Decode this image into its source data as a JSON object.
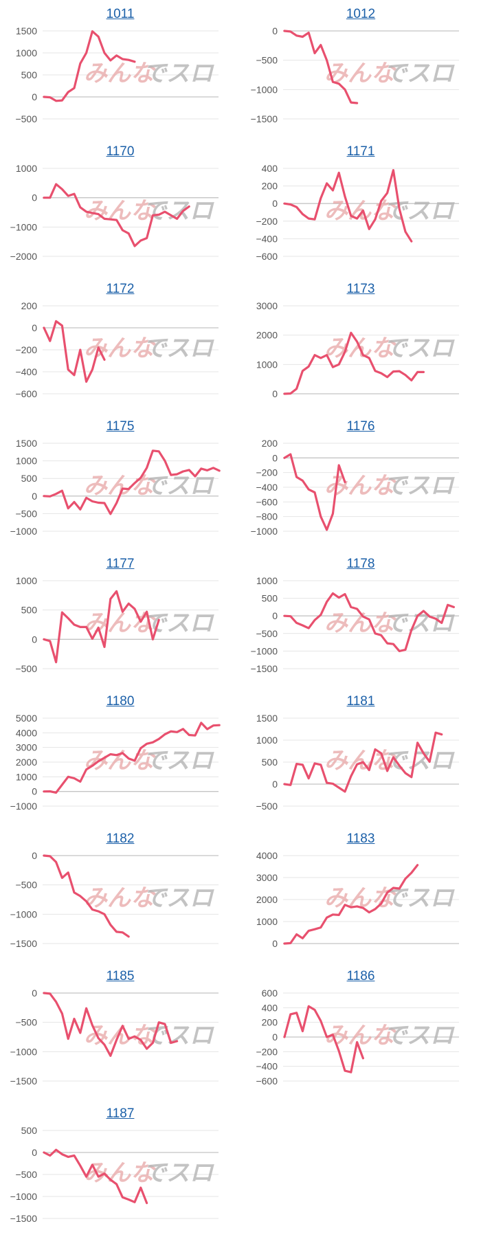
{
  "watermark": {
    "part1": "みんな",
    "part2": "でスロ"
  },
  "colors": {
    "line": "#e8506e",
    "title": "#1a5fa8"
  },
  "chart_data": [
    {
      "type": "line",
      "title": "1011",
      "ylim": [
        -500,
        1500
      ],
      "yticks": [
        1500,
        1000,
        500,
        0,
        -500
      ],
      "values": [
        0,
        -10,
        -90,
        -80,
        110,
        200,
        760,
        1000,
        1490,
        1370,
        1000,
        830,
        940,
        860,
        840,
        800
      ]
    },
    {
      "type": "line",
      "title": "1012",
      "ylim": [
        -1500,
        0
      ],
      "yticks": [
        0,
        -500,
        -1000,
        -1500
      ],
      "values": [
        0,
        -10,
        -80,
        -100,
        -30,
        -380,
        -240,
        -500,
        -870,
        -900,
        -1000,
        -1220,
        -1230
      ]
    },
    {
      "type": "line",
      "title": "1170",
      "ylim": [
        -2000,
        1000
      ],
      "yticks": [
        1000,
        0,
        -1000,
        -2000
      ],
      "values": [
        0,
        0,
        460,
        290,
        60,
        130,
        -330,
        -480,
        -520,
        -560,
        -720,
        -740,
        -760,
        -1110,
        -1220,
        -1650,
        -1460,
        -1380,
        -600,
        -580,
        -480,
        -600,
        -720,
        -450,
        -300
      ]
    },
    {
      "type": "line",
      "title": "1171",
      "ylim": [
        -600,
        400
      ],
      "yticks": [
        400,
        200,
        0,
        -200,
        -400,
        -600
      ],
      "values": [
        0,
        -10,
        -40,
        -120,
        -170,
        -180,
        60,
        230,
        150,
        350,
        80,
        -140,
        -170,
        -80,
        -290,
        -180,
        30,
        120,
        380,
        -60,
        -320,
        -430
      ]
    },
    {
      "type": "line",
      "title": "1172",
      "ylim": [
        -600,
        200
      ],
      "yticks": [
        200,
        0,
        -200,
        -400,
        -600
      ],
      "values": [
        0,
        -120,
        60,
        20,
        -380,
        -430,
        -200,
        -490,
        -380,
        -180,
        -290
      ]
    },
    {
      "type": "line",
      "title": "1173",
      "ylim": [
        0,
        3000
      ],
      "yticks": [
        3000,
        2000,
        1000,
        0
      ],
      "values": [
        0,
        10,
        170,
        780,
        930,
        1320,
        1220,
        1320,
        910,
        1000,
        1430,
        2080,
        1780,
        1320,
        1220,
        780,
        700,
        570,
        760,
        770,
        640,
        460,
        740,
        740
      ]
    },
    {
      "type": "line",
      "title": "1175",
      "ylim": [
        -1000,
        1500
      ],
      "yticks": [
        1500,
        1000,
        500,
        0,
        -500,
        -1000
      ],
      "values": [
        0,
        -10,
        60,
        150,
        -350,
        -170,
        -380,
        -50,
        -150,
        -190,
        -200,
        -510,
        -200,
        210,
        200,
        370,
        520,
        800,
        1290,
        1270,
        1000,
        600,
        620,
        700,
        740,
        560,
        780,
        730,
        800,
        720
      ]
    },
    {
      "type": "line",
      "title": "1176",
      "ylim": [
        -1000,
        200
      ],
      "yticks": [
        200,
        0,
        -200,
        -400,
        -600,
        -800,
        -1000
      ],
      "values": [
        0,
        50,
        -260,
        -310,
        -430,
        -470,
        -800,
        -980,
        -760,
        -100,
        -330
      ]
    },
    {
      "type": "line",
      "title": "1177",
      "ylim": [
        -500,
        1000
      ],
      "yticks": [
        1000,
        500,
        0,
        -500
      ],
      "values": [
        0,
        -30,
        -390,
        460,
        360,
        250,
        210,
        210,
        10,
        200,
        -130,
        690,
        820,
        470,
        610,
        520,
        300,
        470,
        0,
        330
      ]
    },
    {
      "type": "line",
      "title": "1178",
      "ylim": [
        -1500,
        1000
      ],
      "yticks": [
        1000,
        500,
        0,
        -500,
        -1000,
        -1500
      ],
      "values": [
        0,
        -10,
        -200,
        -270,
        -350,
        -120,
        30,
        400,
        640,
        520,
        620,
        250,
        200,
        -20,
        -100,
        -500,
        -550,
        -780,
        -800,
        -1000,
        -960,
        -400,
        0,
        140,
        -20,
        -80,
        -200,
        310,
        250
      ]
    },
    {
      "type": "line",
      "title": "1180",
      "ylim": [
        -1000,
        5000
      ],
      "yticks": [
        5000,
        4000,
        3000,
        2000,
        1000,
        0,
        -1000
      ],
      "values": [
        0,
        10,
        -80,
        460,
        1000,
        900,
        670,
        1500,
        1750,
        2060,
        2300,
        2540,
        2480,
        2620,
        2250,
        2100,
        2950,
        3250,
        3350,
        3580,
        3900,
        4100,
        4050,
        4260,
        3850,
        3820,
        4680,
        4250,
        4500,
        4520
      ]
    },
    {
      "type": "line",
      "title": "1181",
      "ylim": [
        -500,
        1500
      ],
      "yticks": [
        1500,
        1000,
        500,
        0,
        -500
      ],
      "values": [
        0,
        -20,
        460,
        440,
        130,
        470,
        440,
        30,
        10,
        -80,
        -170,
        180,
        450,
        500,
        320,
        790,
        700,
        300,
        610,
        420,
        250,
        160,
        940,
        700,
        510,
        1170,
        1130
      ]
    },
    {
      "type": "line",
      "title": "1182",
      "ylim": [
        -1500,
        0
      ],
      "yticks": [
        0,
        -500,
        -1000,
        -1500
      ],
      "values": [
        0,
        -10,
        -110,
        -380,
        -290,
        -630,
        -690,
        -780,
        -920,
        -950,
        -1000,
        -1180,
        -1300,
        -1310,
        -1380
      ]
    },
    {
      "type": "line",
      "title": "1183",
      "ylim": [
        0,
        4000
      ],
      "yticks": [
        4000,
        3000,
        2000,
        1000,
        0
      ],
      "values": [
        0,
        20,
        420,
        240,
        580,
        650,
        730,
        1180,
        1320,
        1300,
        1760,
        1650,
        1690,
        1620,
        1420,
        1570,
        1820,
        2320,
        2530,
        2500,
        2950,
        3220,
        3570
      ]
    },
    {
      "type": "line",
      "title": "1185",
      "ylim": [
        -1500,
        0
      ],
      "yticks": [
        0,
        -500,
        -1000,
        -1500
      ],
      "values": [
        0,
        -10,
        -150,
        -350,
        -780,
        -440,
        -680,
        -260,
        -550,
        -770,
        -880,
        -1070,
        -800,
        -560,
        -780,
        -740,
        -800,
        -950,
        -850,
        -500,
        -530,
        -850,
        -820
      ]
    },
    {
      "type": "line",
      "title": "1186",
      "ylim": [
        -600,
        600
      ],
      "yticks": [
        600,
        400,
        200,
        0,
        -200,
        -400,
        -600
      ],
      "values": [
        0,
        310,
        330,
        80,
        420,
        370,
        220,
        0,
        30,
        -190,
        -460,
        -480,
        -70,
        -290
      ]
    },
    {
      "type": "line",
      "title": "1187",
      "ylim": [
        -1500,
        500
      ],
      "yticks": [
        500,
        0,
        -500,
        -1000,
        -1500
      ],
      "values": [
        0,
        -70,
        60,
        -40,
        -100,
        -70,
        -300,
        -550,
        -280,
        -550,
        -480,
        -620,
        -720,
        -1020,
        -1070,
        -1130,
        -800,
        -1150
      ]
    }
  ]
}
